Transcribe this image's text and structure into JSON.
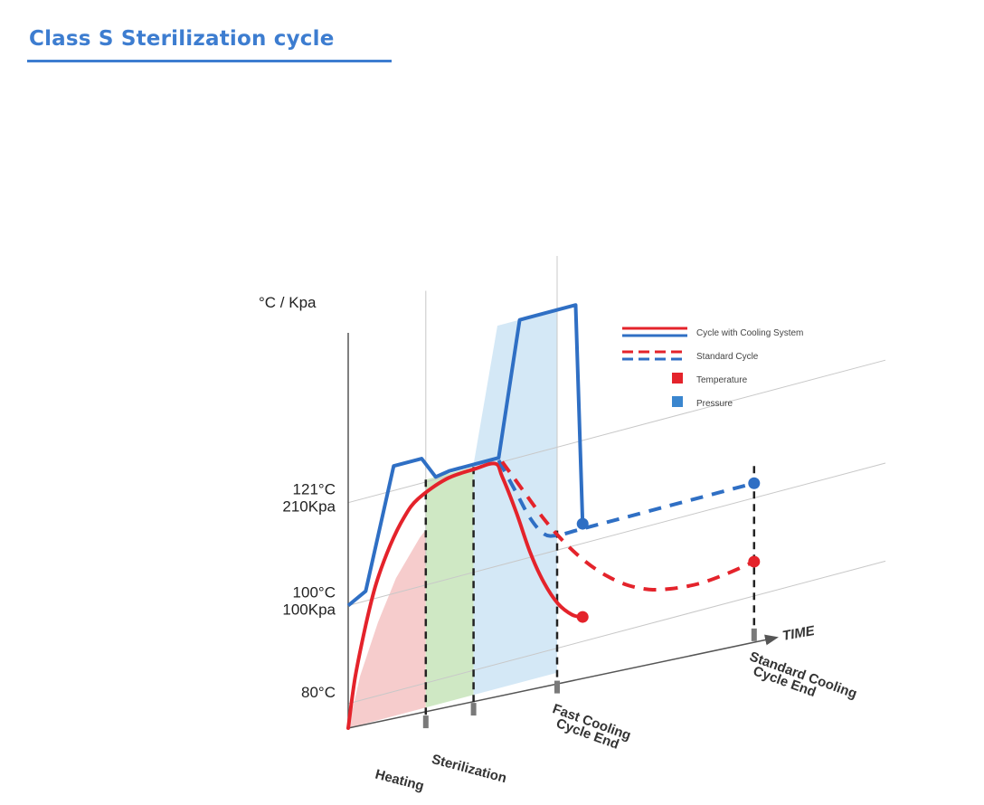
{
  "header": {
    "title": "Class S Sterilization cycle"
  },
  "colors": {
    "temperature": "#e4232b",
    "pressure": "#2f6fc4",
    "heating_fill": "#f5c6c6",
    "sterilization_fill": "#cfe8c4",
    "cooling_fill": "#d4e8f6",
    "axis": "#555555",
    "grid": "#c8c8c8",
    "marker": "#333333"
  },
  "chart_data": {
    "type": "line",
    "title": "Class S Sterilization cycle",
    "ylabel": "°C / Kpa",
    "xlabel": "TIME",
    "y_ticks": [
      {
        "lines": [
          "121°C",
          "210Kpa"
        ],
        "value": 121
      },
      {
        "lines": [
          "100°C",
          "100Kpa"
        ],
        "value": 100
      },
      {
        "lines": [
          "80°C"
        ],
        "value": 80
      }
    ],
    "phases": [
      "Heating",
      "Sterilization"
    ],
    "end_markers": [
      {
        "lines": [
          "Fast Cooling",
          "Cycle End"
        ]
      },
      {
        "lines": [
          "Standard Cooling",
          "Cycle End"
        ]
      }
    ],
    "legend": [
      {
        "label": "Cycle with Cooling System",
        "style": "solid"
      },
      {
        "label": "Standard Cycle",
        "style": "dashed"
      },
      {
        "label": "Temperature",
        "style": "swatch",
        "color": "#e4232b"
      },
      {
        "label": "Pressure",
        "style": "swatch",
        "color": "#3a86cf"
      }
    ],
    "series": [
      {
        "name": "Pressure - Cycle with Cooling System",
        "style": "solid",
        "color": "#2f6fc4",
        "x": [
          0,
          2.5,
          6.5,
          10.5,
          12.5,
          14.5,
          21.5,
          24.5,
          25.5,
          32.5,
          33.5
        ],
        "y": [
          100,
          102,
          126,
          126,
          121.5,
          122,
          122,
          149,
          149,
          149,
          104
        ]
      },
      {
        "name": "Temperature - Cycle with Cooling System",
        "style": "solid",
        "color": "#e4232b",
        "x": [
          0,
          1,
          2.5,
          4,
          6,
          8,
          10,
          14,
          18,
          21,
          22,
          24,
          26,
          28,
          30,
          32,
          33.5
        ],
        "y": [
          75,
          85,
          95,
          103,
          110,
          115,
          118,
          120.5,
          121,
          121,
          118,
          110,
          101,
          94,
          89,
          86,
          85
        ]
      },
      {
        "name": "Pressure - Standard Cycle",
        "style": "dashed",
        "color": "#2f6fc4",
        "x": [
          21.5,
          24,
          26,
          28,
          30,
          33.5,
          42,
          50,
          58
        ],
        "y": [
          121.5,
          114,
          108,
          104,
          103,
          103,
          103,
          103,
          103
        ]
      },
      {
        "name": "Temperature - Standard Cycle",
        "style": "dashed",
        "color": "#e4232b",
        "x": [
          22,
          25,
          28,
          31,
          34,
          37,
          40,
          43,
          46,
          50,
          54,
          58
        ],
        "y": [
          121,
          114,
          107,
          101,
          96,
          92,
          89,
          87,
          86,
          85.5,
          86,
          87
        ]
      }
    ]
  }
}
